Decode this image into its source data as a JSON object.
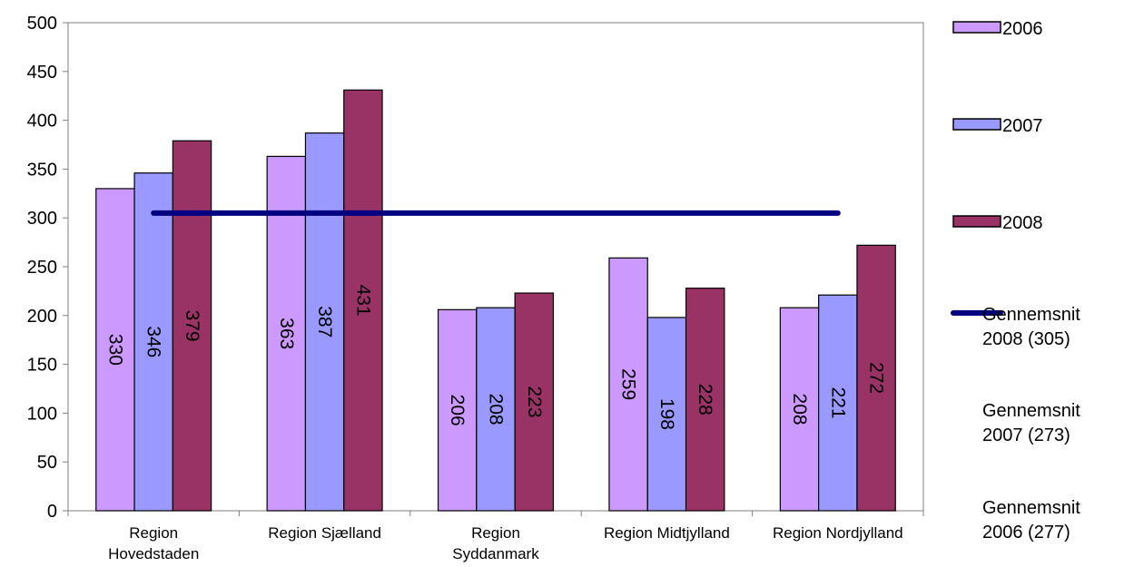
{
  "chart_data": {
    "type": "bar",
    "categories": [
      [
        "Region",
        "Hovedstaden"
      ],
      [
        "Region Sjælland"
      ],
      [
        "Region",
        "Syddanmark"
      ],
      [
        "Region Midtjylland"
      ],
      [
        "Region Nordjylland"
      ]
    ],
    "series": [
      {
        "name": "2006",
        "values": [
          330,
          363,
          206,
          259,
          208
        ],
        "color": "#cc99ff"
      },
      {
        "name": "2007",
        "values": [
          346,
          387,
          208,
          198,
          221
        ],
        "color": "#9999ff"
      },
      {
        "name": "2008",
        "values": [
          379,
          431,
          223,
          228,
          272
        ],
        "color": "#993366"
      }
    ],
    "reference_lines": [
      {
        "name": [
          "Gennemsnit",
          "2008 (305)"
        ],
        "value": 305,
        "color": "#000080",
        "visible": true
      },
      {
        "name": [
          "Gennemsnit",
          "2007 (273)"
        ],
        "value": 273,
        "visible": false
      },
      {
        "name": [
          "Gennemsnit",
          "2006 (277)"
        ],
        "value": 277,
        "visible": false
      }
    ],
    "ylim": [
      0,
      500
    ],
    "yticks": [
      0,
      50,
      100,
      150,
      200,
      250,
      300,
      350,
      400,
      450,
      500
    ],
    "data_labels": "inside-rotated",
    "legend": "right",
    "grid": false,
    "title": "",
    "xlabel": "",
    "ylabel": ""
  }
}
